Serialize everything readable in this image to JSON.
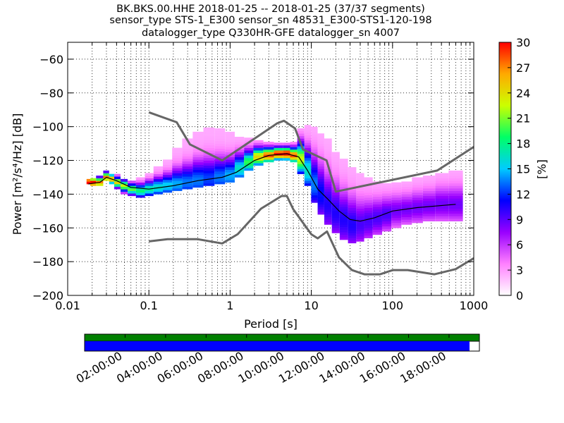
{
  "chart_data": {
    "type": "heatmap",
    "title_lines": [
      "BK.BKS.00.HHE   2018-01-25 -- 2018-01-25  (37/37 segments)",
      "sensor_type STS-1_E300 sensor_sn 48531_E300-STS1-120-198",
      "datalogger_type Q330HR-GFE datalogger_sn 4007"
    ],
    "xlabel": "Period [s]",
    "ylabel": "Power [m²/s⁴/Hz] [dB]",
    "x_scale": "log",
    "xlim": [
      0.01,
      1000
    ],
    "ylim": [
      -200,
      -50
    ],
    "x_ticks": [
      0.01,
      0.1,
      1,
      10,
      100,
      1000
    ],
    "x_tick_labels": [
      "0.01",
      "0.1",
      "1",
      "10",
      "100",
      "1000"
    ],
    "y_ticks": [
      -200,
      -180,
      -160,
      -140,
      -120,
      -100,
      -80,
      -60
    ],
    "y_tick_labels": [
      "−200",
      "−180",
      "−160",
      "−140",
      "−120",
      "−100",
      "−80",
      "−60"
    ],
    "grid": true,
    "colorbar": {
      "label": "[%]",
      "range": [
        0,
        30
      ],
      "ticks": [
        0,
        3,
        6,
        9,
        12,
        15,
        18,
        21,
        24,
        27,
        30
      ],
      "tick_labels": [
        "0",
        "3",
        "6",
        "9",
        "12",
        "15",
        "18",
        "21",
        "24",
        "27",
        "30"
      ],
      "colormap": [
        "#ffffff",
        "#ff80ff",
        "#9900ff",
        "#0000ff",
        "#00ccff",
        "#00ff66",
        "#ccff00",
        "#ffaa00",
        "#ff0000"
      ]
    },
    "noise_models": [
      {
        "name": "NHNM",
        "color": "#666666",
        "points": [
          [
            0.1,
            -91.5
          ],
          [
            0.22,
            -97.4
          ],
          [
            0.32,
            -110.5
          ],
          [
            0.8,
            -120
          ],
          [
            3.8,
            -98
          ],
          [
            4.6,
            -96.5
          ],
          [
            6.3,
            -101
          ],
          [
            7.9,
            -113.5
          ],
          [
            15.4,
            -120
          ],
          [
            20,
            -138.5
          ],
          [
            354.8,
            -126
          ],
          [
            1000,
            -112
          ]
        ]
      },
      {
        "name": "NLNM",
        "color": "#666666",
        "points": [
          [
            0.1,
            -168
          ],
          [
            0.17,
            -166.7
          ],
          [
            0.4,
            -166.7
          ],
          [
            0.8,
            -169.2
          ],
          [
            1.24,
            -163.7
          ],
          [
            2.4,
            -148.6
          ],
          [
            4.3,
            -141.1
          ],
          [
            5,
            -141.1
          ],
          [
            6,
            -149
          ],
          [
            10,
            -163.8
          ],
          [
            12,
            -166.2
          ],
          [
            15.6,
            -162.1
          ],
          [
            21.9,
            -177.5
          ],
          [
            31.6,
            -185
          ],
          [
            45,
            -187.5
          ],
          [
            70,
            -187.5
          ],
          [
            101,
            -185
          ],
          [
            154,
            -185
          ],
          [
            328,
            -187.5
          ],
          [
            600,
            -184.4
          ],
          [
            1000,
            -178
          ]
        ]
      }
    ],
    "mean_psd": {
      "color": "#000000",
      "points": [
        [
          0.018,
          -134
        ],
        [
          0.025,
          -133
        ],
        [
          0.03,
          -130
        ],
        [
          0.04,
          -132
        ],
        [
          0.06,
          -136
        ],
        [
          0.1,
          -137
        ],
        [
          0.2,
          -135
        ],
        [
          0.4,
          -132
        ],
        [
          0.8,
          -130
        ],
        [
          1.2,
          -127
        ],
        [
          2,
          -120
        ],
        [
          3,
          -117
        ],
        [
          5,
          -116
        ],
        [
          7,
          -118
        ],
        [
          9,
          -126
        ],
        [
          12,
          -137
        ],
        [
          16,
          -143
        ],
        [
          22,
          -150
        ],
        [
          30,
          -155
        ],
        [
          40,
          -156
        ],
        [
          60,
          -154
        ],
        [
          100,
          -150
        ],
        [
          200,
          -148
        ],
        [
          600,
          -146
        ]
      ]
    },
    "psd_density": [
      {
        "period": 0.018,
        "db_low": -134,
        "db_high": -132,
        "peak_db": -133,
        "max_pct": 30
      },
      {
        "period": 0.02,
        "db_low": -135,
        "db_high": -131,
        "peak_db": -133,
        "max_pct": 28
      },
      {
        "period": 0.025,
        "db_low": -135,
        "db_high": -130,
        "peak_db": -133,
        "max_pct": 25
      },
      {
        "period": 0.03,
        "db_low": -132,
        "db_high": -127,
        "peak_db": -130,
        "max_pct": 25
      },
      {
        "period": 0.035,
        "db_low": -134,
        "db_high": -128,
        "peak_db": -131,
        "max_pct": 24
      },
      {
        "period": 0.04,
        "db_low": -137,
        "db_high": -129,
        "peak_db": -133,
        "max_pct": 22
      },
      {
        "period": 0.05,
        "db_low": -140,
        "db_high": -131,
        "peak_db": -135,
        "max_pct": 20
      },
      {
        "period": 0.06,
        "db_low": -141,
        "db_high": -132,
        "peak_db": -137,
        "max_pct": 18
      },
      {
        "period": 0.08,
        "db_low": -142,
        "db_high": -131,
        "peak_db": -138,
        "max_pct": 16
      },
      {
        "period": 0.1,
        "db_low": -141,
        "db_high": -128,
        "peak_db": -137,
        "max_pct": 15
      },
      {
        "period": 0.13,
        "db_low": -140,
        "db_high": -124,
        "peak_db": -136,
        "max_pct": 14
      },
      {
        "period": 0.17,
        "db_low": -139,
        "db_high": -120,
        "peak_db": -135,
        "max_pct": 13
      },
      {
        "period": 0.22,
        "db_low": -138,
        "db_high": -113,
        "peak_db": -134,
        "max_pct": 12
      },
      {
        "period": 0.3,
        "db_low": -137,
        "db_high": -108,
        "peak_db": -133,
        "max_pct": 11
      },
      {
        "period": 0.4,
        "db_low": -136,
        "db_high": -103,
        "peak_db": -132,
        "max_pct": 11
      },
      {
        "period": 0.55,
        "db_low": -135,
        "db_high": -101,
        "peak_db": -131,
        "max_pct": 10
      },
      {
        "period": 0.75,
        "db_low": -134,
        "db_high": -102,
        "peak_db": -130,
        "max_pct": 11
      },
      {
        "period": 1.0,
        "db_low": -133,
        "db_high": -104,
        "peak_db": -129,
        "max_pct": 12
      },
      {
        "period": 1.3,
        "db_low": -130,
        "db_high": -106,
        "peak_db": -125,
        "max_pct": 14
      },
      {
        "period": 1.7,
        "db_low": -126,
        "db_high": -107,
        "peak_db": -121,
        "max_pct": 17
      },
      {
        "period": 2.2,
        "db_low": -123,
        "db_high": -108,
        "peak_db": -118,
        "max_pct": 22
      },
      {
        "period": 3.0,
        "db_low": -121,
        "db_high": -109,
        "peak_db": -117,
        "max_pct": 26
      },
      {
        "period": 4.0,
        "db_low": -120,
        "db_high": -110,
        "peak_db": -116,
        "max_pct": 28
      },
      {
        "period": 5.0,
        "db_low": -120,
        "db_high": -110,
        "peak_db": -116,
        "max_pct": 29
      },
      {
        "period": 6.0,
        "db_low": -121,
        "db_high": -109,
        "peak_db": -117,
        "max_pct": 26
      },
      {
        "period": 7.5,
        "db_low": -128,
        "db_high": -102,
        "peak_db": -119,
        "max_pct": 20
      },
      {
        "period": 9.0,
        "db_low": -135,
        "db_high": -100,
        "peak_db": -126,
        "max_pct": 14
      },
      {
        "period": 11.0,
        "db_low": -145,
        "db_high": -101,
        "peak_db": -134,
        "max_pct": 11
      },
      {
        "period": 13.0,
        "db_low": -152,
        "db_high": -104,
        "peak_db": -140,
        "max_pct": 9
      },
      {
        "period": 16.0,
        "db_low": -158,
        "db_high": -108,
        "peak_db": -146,
        "max_pct": 8
      },
      {
        "period": 20.0,
        "db_low": -163,
        "db_high": -115,
        "peak_db": -151,
        "max_pct": 8
      },
      {
        "period": 25.0,
        "db_low": -167,
        "db_high": -120,
        "peak_db": -155,
        "max_pct": 8
      },
      {
        "period": 32.0,
        "db_low": -169,
        "db_high": -124,
        "peak_db": -158,
        "max_pct": 8
      },
      {
        "period": 40.0,
        "db_low": -168,
        "db_high": -128,
        "peak_db": -158,
        "max_pct": 7
      },
      {
        "period": 50.0,
        "db_low": -166,
        "db_high": -131,
        "peak_db": -156,
        "max_pct": 7
      },
      {
        "period": 65.0,
        "db_low": -164,
        "db_high": -133,
        "peak_db": -154,
        "max_pct": 7
      },
      {
        "period": 85.0,
        "db_low": -162,
        "db_high": -134,
        "peak_db": -152,
        "max_pct": 7
      },
      {
        "period": 110.0,
        "db_low": -160,
        "db_high": -134,
        "peak_db": -150,
        "max_pct": 6
      },
      {
        "period": 150.0,
        "db_low": -158,
        "db_high": -133,
        "peak_db": -149,
        "max_pct": 6
      },
      {
        "period": 200.0,
        "db_low": -157,
        "db_high": -131,
        "peak_db": -148,
        "max_pct": 6
      },
      {
        "period": 280.0,
        "db_low": -156,
        "db_high": -130,
        "peak_db": -147,
        "max_pct": 6
      },
      {
        "period": 400.0,
        "db_low": -156,
        "db_high": -128,
        "peak_db": -146,
        "max_pct": 6
      },
      {
        "period": 600.0,
        "db_low": -156,
        "db_high": -127,
        "peak_db": -146,
        "max_pct": 6
      }
    ],
    "timeline": {
      "data_coverage_fraction": 0.975,
      "tick_labels": [
        "02:00:00",
        "04:00:00",
        "06:00:00",
        "08:00:00",
        "10:00:00",
        "12:00:00",
        "14:00:00",
        "16:00:00",
        "18:00:00"
      ],
      "data_color": "#0000ff",
      "used_color": "#008000"
    }
  }
}
